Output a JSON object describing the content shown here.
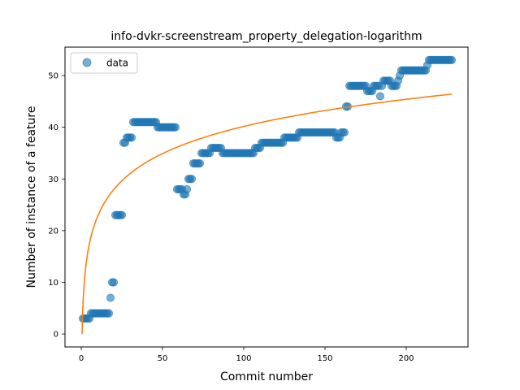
{
  "chart_data": {
    "type": "scatter",
    "title": "info-dvkr-screenstream_property_delegation-logarithm",
    "xlabel": "Commit number",
    "ylabel": "Number of instance of a feature",
    "xlim": [
      -10,
      238
    ],
    "ylim": [
      -2.5,
      55.5
    ],
    "xticks": [
      0,
      50,
      100,
      150,
      200
    ],
    "yticks": [
      0,
      10,
      20,
      30,
      40,
      50
    ],
    "legend": {
      "position": "top-left",
      "entries": [
        "data"
      ]
    },
    "grid": false,
    "colors": {
      "data": "#1f77b4",
      "fit": "#ff7f0e"
    },
    "series": [
      {
        "name": "data",
        "kind": "scatter",
        "segments": [
          {
            "x_from": 1,
            "x_to": 5,
            "y": 3
          },
          {
            "x_from": 6,
            "x_to": 17,
            "y": 4
          },
          {
            "x_from": 18,
            "x_to": 18,
            "y": 7
          },
          {
            "x_from": 19,
            "x_to": 20,
            "y": 10
          },
          {
            "x_from": 21,
            "x_to": 25,
            "y": 23
          },
          {
            "x_from": 26,
            "x_to": 27,
            "y": 37
          },
          {
            "x_from": 28,
            "x_to": 31,
            "y": 38
          },
          {
            "x_from": 32,
            "x_to": 46,
            "y": 41
          },
          {
            "x_from": 47,
            "x_to": 58,
            "y": 40
          },
          {
            "x_from": 59,
            "x_to": 62,
            "y": 28
          },
          {
            "x_from": 63,
            "x_to": 64,
            "y": 27
          },
          {
            "x_from": 65,
            "x_to": 65,
            "y": 28
          },
          {
            "x_from": 66,
            "x_to": 68,
            "y": 30
          },
          {
            "x_from": 69,
            "x_to": 73,
            "y": 33
          },
          {
            "x_from": 74,
            "x_to": 79,
            "y": 35
          },
          {
            "x_from": 80,
            "x_to": 86,
            "y": 36
          },
          {
            "x_from": 87,
            "x_to": 106,
            "y": 35
          },
          {
            "x_from": 107,
            "x_to": 110,
            "y": 36
          },
          {
            "x_from": 111,
            "x_to": 124,
            "y": 37
          },
          {
            "x_from": 125,
            "x_to": 133,
            "y": 38
          },
          {
            "x_from": 134,
            "x_to": 156,
            "y": 39
          },
          {
            "x_from": 157,
            "x_to": 159,
            "y": 38
          },
          {
            "x_from": 160,
            "x_to": 162,
            "y": 39
          },
          {
            "x_from": 163,
            "x_to": 164,
            "y": 44
          },
          {
            "x_from": 165,
            "x_to": 175,
            "y": 48
          },
          {
            "x_from": 176,
            "x_to": 179,
            "y": 47
          },
          {
            "x_from": 180,
            "x_to": 183,
            "y": 48
          },
          {
            "x_from": 184,
            "x_to": 184,
            "y": 46
          },
          {
            "x_from": 185,
            "x_to": 185,
            "y": 48
          },
          {
            "x_from": 186,
            "x_to": 190,
            "y": 49
          },
          {
            "x_from": 191,
            "x_to": 194,
            "y": 48
          },
          {
            "x_from": 195,
            "x_to": 195,
            "y": 49
          },
          {
            "x_from": 196,
            "x_to": 196,
            "y": 50
          },
          {
            "x_from": 197,
            "x_to": 212,
            "y": 51
          },
          {
            "x_from": 213,
            "x_to": 213,
            "y": 52
          },
          {
            "x_from": 214,
            "x_to": 228,
            "y": 53
          }
        ]
      },
      {
        "name": "fit",
        "kind": "line",
        "model": "logarithmic",
        "x_range": [
          0.5,
          228
        ],
        "y_at_x_range": [
          0,
          46.4
        ]
      }
    ]
  }
}
